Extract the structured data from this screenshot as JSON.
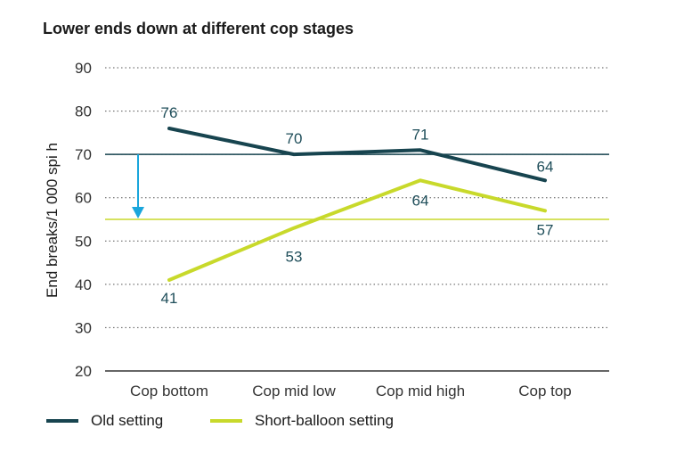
{
  "chart_data": {
    "type": "line",
    "title": "Lower ends down at different cop stages",
    "ylabel": "End breaks/1 000 spi h",
    "xlabel": "",
    "categories": [
      "Cop bottom",
      "Cop mid low",
      "Cop mid high",
      "Cop top"
    ],
    "ylim": [
      20,
      90
    ],
    "yticks": [
      20,
      30,
      40,
      50,
      60,
      70,
      80,
      90
    ],
    "grid": true,
    "legend_position": "bottom-left",
    "series": [
      {
        "name": "Old setting",
        "values": [
          76,
          70,
          71,
          64
        ],
        "color": "#17444f",
        "labels": [
          "76",
          "70",
          "71",
          "64"
        ],
        "reference_line": 70
      },
      {
        "name": "Short-balloon setting",
        "values": [
          41,
          53,
          64,
          57
        ],
        "color": "#c8d92b",
        "labels": [
          "41",
          "53",
          "64",
          "57"
        ],
        "reference_line": 55
      }
    ],
    "arrow": {
      "from": 70,
      "to": 55,
      "color": "#1aa6dc"
    }
  }
}
